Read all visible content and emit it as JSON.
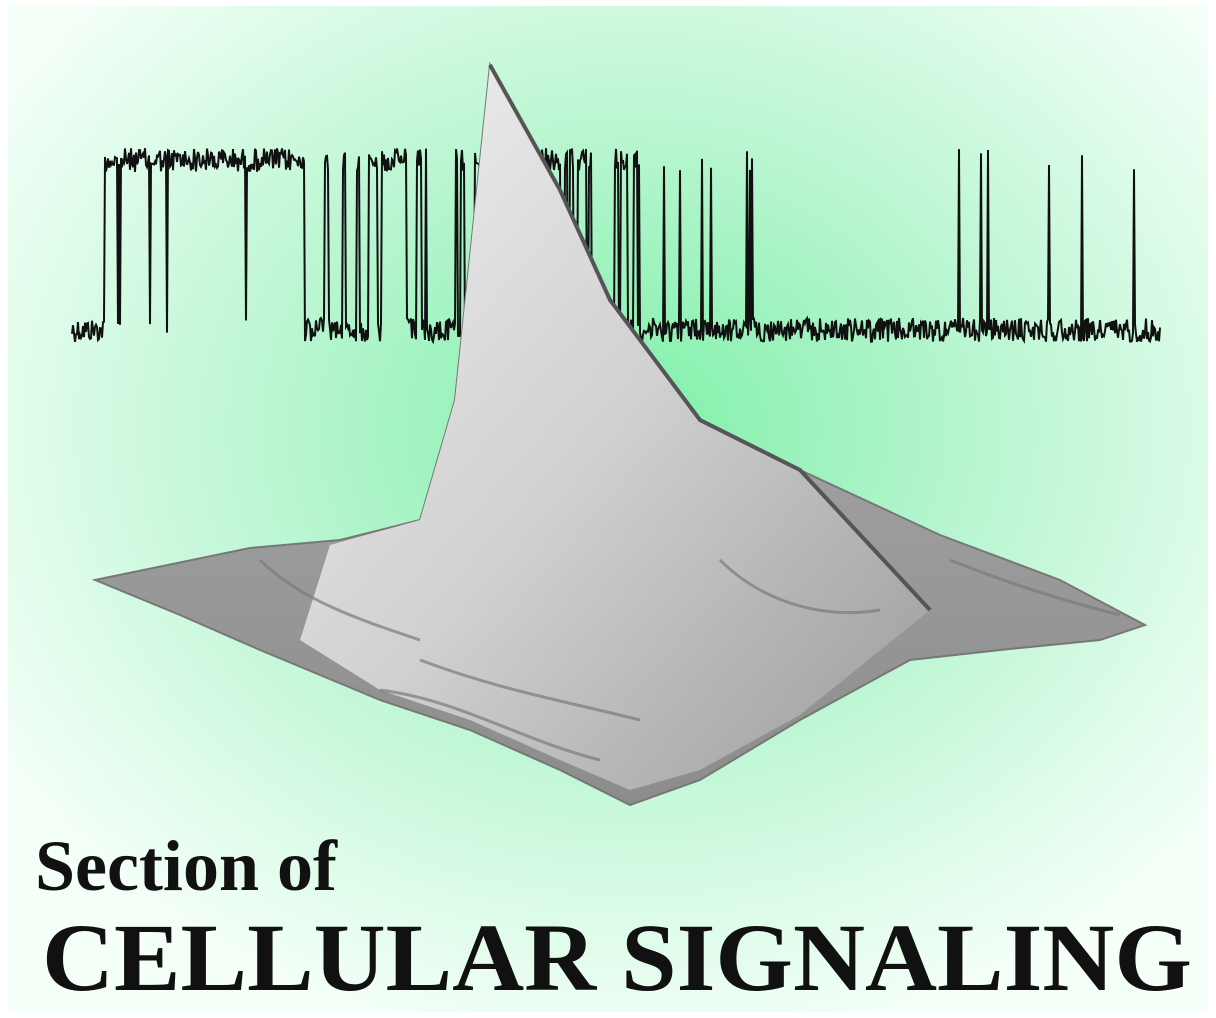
{
  "logo": {
    "line1": "Section of",
    "line2": "CELLULAR SIGNALING"
  }
}
